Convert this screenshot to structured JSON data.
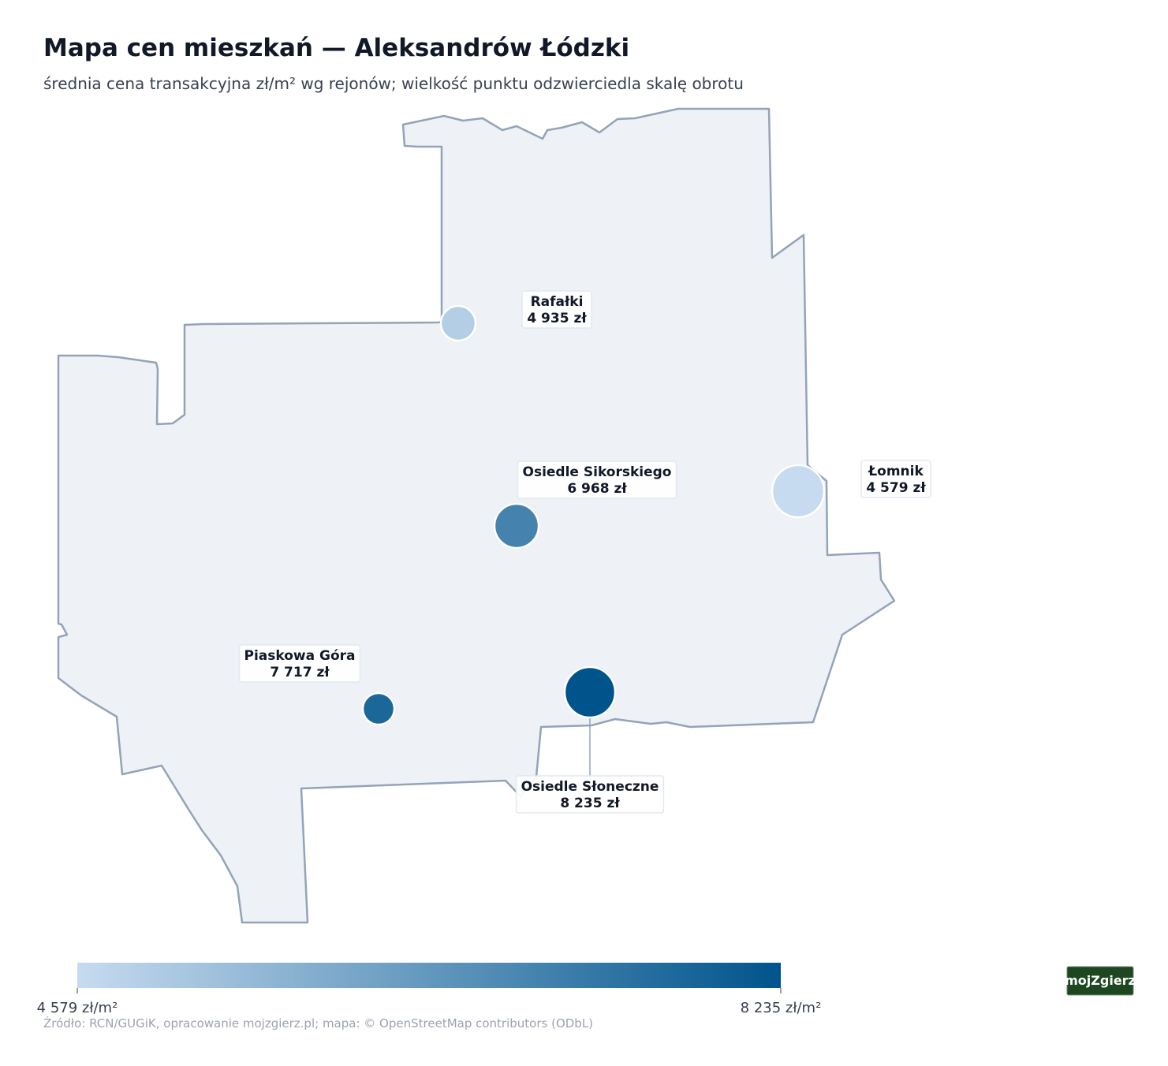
{
  "chart_data": {
    "type": "bubble-map",
    "title": "Mapa cen mieszkań — Aleksandrów Łódzki",
    "subtitle": "średnia cena transakcyjna zł/m² wg rejonów; wielkość punktu odzwierciedla skalę obrotu",
    "categories": [
      "Rafałki",
      "Osiedle Sikorskiego",
      "Łomnik",
      "Piaskowa Góra",
      "Osiedle Słoneczne"
    ],
    "values": [
      4935,
      6968,
      4579,
      7717,
      8235
    ],
    "value_labels": [
      "4 935 zł",
      "6 968 zł",
      "4 579 zł",
      "7 717 zł",
      "8 235 zł"
    ],
    "colors": [
      "#c6dbef",
      "#00548c"
    ],
    "colorbar_lim": [
      4579,
      8235
    ],
    "colorbar_ticks": [
      {
        "value": 4579,
        "label": "4 579 zł/m²"
      },
      {
        "value": 8235,
        "label": "8 235 zł/m²"
      }
    ],
    "source": "Źródło: RCN/GUGiK, opracowanie mojzgierz.pl; mapa: © OpenStreetMap contributors (ODbL)",
    "logo": "mojZgierz"
  }
}
